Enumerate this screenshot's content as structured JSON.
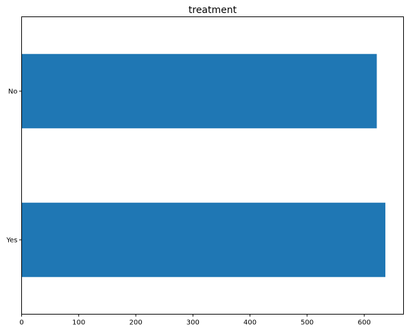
{
  "chart_data": {
    "type": "bar",
    "orientation": "horizontal",
    "title": "treatment",
    "xlabel": "",
    "ylabel": "",
    "categories": [
      "Yes",
      "No"
    ],
    "values": [
      637,
      622
    ],
    "xlim": [
      0,
      668.85
    ],
    "xticks": [
      0,
      100,
      200,
      300,
      400,
      500,
      600
    ],
    "grid": false,
    "legend": "none",
    "bar_color": "#1f77b4"
  }
}
